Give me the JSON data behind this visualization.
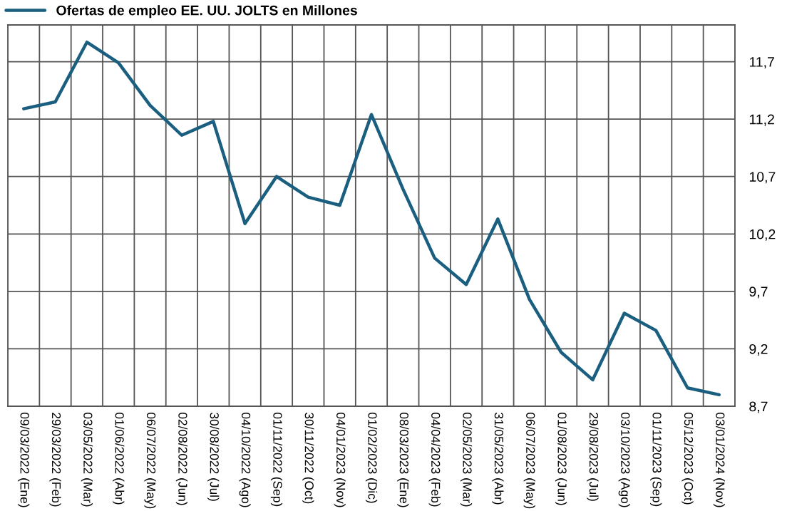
{
  "chart_data": {
    "type": "line",
    "categories": [
      "09/03/2022 (Ene)",
      "29/03/2022 (Feb)",
      "03/05/2022 (Mar)",
      "01/06/2022 (Abr)",
      "06/07/2022 (May)",
      "02/08/2022 (Jun)",
      "30/08/2022 (Jul)",
      "04/10/2022 (Ago)",
      "01/11/2022 (Sep)",
      "30/11/2022 (Oct)",
      "04/01/2023 (Nov)",
      "01/02/2023 (Dic)",
      "08/03/2023 (Ene)",
      "04/04/2023 (Feb)",
      "02/05/2023 (Mar)",
      "31/05/2023 (Abr)",
      "06/07/2023 (May)",
      "01/08/2023 (Jun)",
      "29/08/2023 (Jul)",
      "03/10/2023 (Ago)",
      "01/11/2023 (Sep)",
      "05/12/2023 (Oct)",
      "03/01/2024 (Nov)"
    ],
    "series": [
      {
        "name": "Ofertas de empleo EE. UU. JOLTS en Millones",
        "color": "#1a5f80",
        "values": [
          11.29,
          11.35,
          11.87,
          11.69,
          11.32,
          11.06,
          11.18,
          10.29,
          10.7,
          10.52,
          10.45,
          11.24,
          10.59,
          9.99,
          9.76,
          10.33,
          9.63,
          9.17,
          8.93,
          9.51,
          9.36,
          8.86,
          8.8
        ]
      }
    ],
    "ylim": [
      8.7,
      12.02
    ],
    "yticks": [
      {
        "value": 8.7,
        "label": "8,7"
      },
      {
        "value": 9.2,
        "label": "9,2"
      },
      {
        "value": 9.7,
        "label": "9,7"
      },
      {
        "value": 10.2,
        "label": "10,2"
      },
      {
        "value": 10.7,
        "label": "10,7"
      },
      {
        "value": 11.2,
        "label": "11,2"
      },
      {
        "value": 11.7,
        "label": "11,7"
      }
    ],
    "grid": true,
    "legend": "top left",
    "marker": "none",
    "line_style": "solid"
  }
}
